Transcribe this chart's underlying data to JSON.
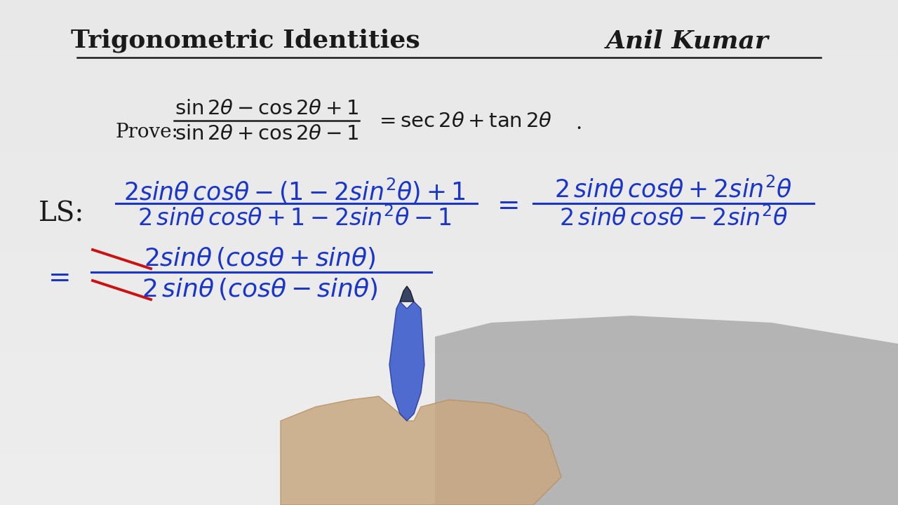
{
  "title": "Trigonometric Identities",
  "author": "Anil Kumar",
  "bg_color": "#e8e8e8",
  "black_color": "#1a1a1a",
  "blue_color": "#1a35cc",
  "red_color": "#cc1111",
  "title_fontsize": 26,
  "author_fontsize": 26,
  "prove_fontsize": 19,
  "main_fontsize": 22
}
